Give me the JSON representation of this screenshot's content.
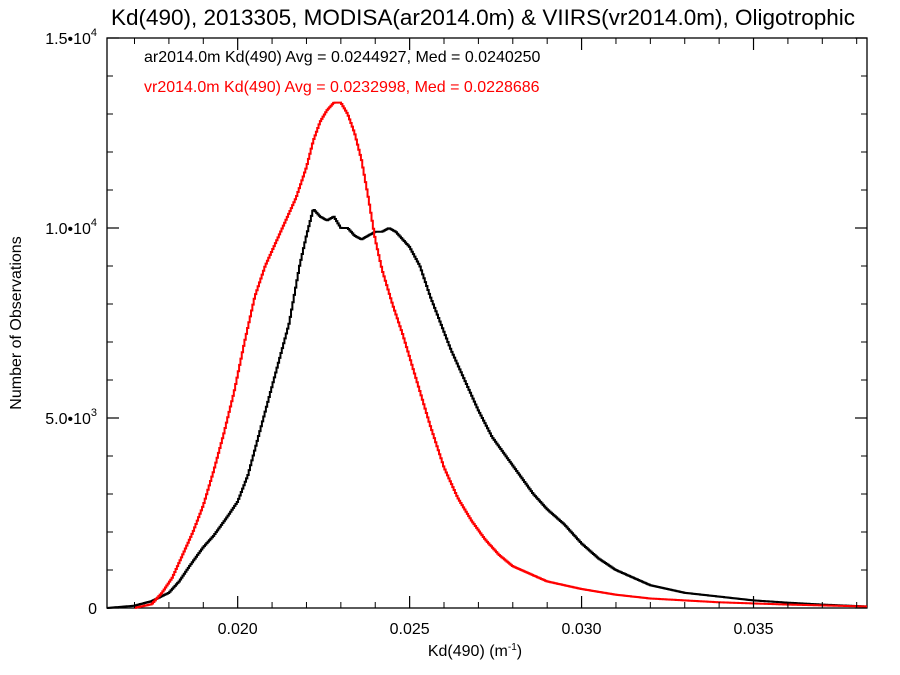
{
  "chart_data": {
    "type": "line",
    "title": "Kd(490), 2013305, MODISA(ar2014.0m) & VIIRS(vr2014.0m), Oligotrophic",
    "xlabel": "Kd(490) (m",
    "xlabel_sup": "-1",
    "xlabel_close": ")",
    "ylabel": "Number of Observations",
    "xlim": [
      0.0162,
      0.0383
    ],
    "ylim": [
      0,
      15000
    ],
    "x_ticks": [
      {
        "value": 0.02,
        "label": "0.020"
      },
      {
        "value": 0.025,
        "label": "0.025"
      },
      {
        "value": 0.03,
        "label": "0.030"
      },
      {
        "value": 0.035,
        "label": "0.035"
      }
    ],
    "y_ticks": [
      {
        "value": 0,
        "label": "0",
        "exp": ""
      },
      {
        "value": 5000,
        "label": "5.0•10",
        "exp": "3"
      },
      {
        "value": 10000,
        "label": "1.0•10",
        "exp": "4"
      },
      {
        "value": 15000,
        "label": "1.5•10",
        "exp": "4"
      }
    ],
    "grid": false,
    "legend_position": "top-left",
    "series": [
      {
        "name": "ar2014.0m Kd(490) Avg = 0.0244927, Med = 0.0240250",
        "color": "#000000",
        "points": [
          [
            0.0162,
            0
          ],
          [
            0.017,
            60
          ],
          [
            0.0175,
            180
          ],
          [
            0.018,
            400
          ],
          [
            0.0183,
            700
          ],
          [
            0.0186,
            1100
          ],
          [
            0.019,
            1600
          ],
          [
            0.0193,
            1900
          ],
          [
            0.0197,
            2400
          ],
          [
            0.02,
            2800
          ],
          [
            0.0203,
            3500
          ],
          [
            0.0206,
            4500
          ],
          [
            0.0209,
            5500
          ],
          [
            0.0212,
            6500
          ],
          [
            0.0215,
            7500
          ],
          [
            0.0218,
            9000
          ],
          [
            0.022,
            9800
          ],
          [
            0.0222,
            10500
          ],
          [
            0.0224,
            10300
          ],
          [
            0.0226,
            10200
          ],
          [
            0.0228,
            10300
          ],
          [
            0.023,
            10000
          ],
          [
            0.0232,
            10000
          ],
          [
            0.0234,
            9800
          ],
          [
            0.0236,
            9700
          ],
          [
            0.0238,
            9800
          ],
          [
            0.024,
            9900
          ],
          [
            0.0242,
            9900
          ],
          [
            0.0244,
            10000
          ],
          [
            0.0246,
            9900
          ],
          [
            0.0248,
            9700
          ],
          [
            0.025,
            9500
          ],
          [
            0.0253,
            9000
          ],
          [
            0.0256,
            8200
          ],
          [
            0.0259,
            7500
          ],
          [
            0.0262,
            6800
          ],
          [
            0.0266,
            6000
          ],
          [
            0.027,
            5200
          ],
          [
            0.0274,
            4500
          ],
          [
            0.0278,
            4000
          ],
          [
            0.0282,
            3500
          ],
          [
            0.0286,
            3000
          ],
          [
            0.029,
            2600
          ],
          [
            0.0295,
            2200
          ],
          [
            0.03,
            1700
          ],
          [
            0.0305,
            1300
          ],
          [
            0.031,
            1000
          ],
          [
            0.0315,
            800
          ],
          [
            0.032,
            600
          ],
          [
            0.033,
            400
          ],
          [
            0.034,
            300
          ],
          [
            0.035,
            200
          ],
          [
            0.036,
            140
          ],
          [
            0.037,
            90
          ],
          [
            0.0383,
            40
          ]
        ]
      },
      {
        "name": "vr2014.0m Kd(490) Avg = 0.0232998, Med = 0.0228686",
        "color": "#ff0000",
        "points": [
          [
            0.017,
            0
          ],
          [
            0.0175,
            100
          ],
          [
            0.0178,
            400
          ],
          [
            0.0181,
            800
          ],
          [
            0.0184,
            1400
          ],
          [
            0.0187,
            2000
          ],
          [
            0.019,
            2700
          ],
          [
            0.0193,
            3600
          ],
          [
            0.0196,
            4600
          ],
          [
            0.0199,
            5700
          ],
          [
            0.0202,
            7000
          ],
          [
            0.0205,
            8200
          ],
          [
            0.0208,
            9000
          ],
          [
            0.0211,
            9600
          ],
          [
            0.0214,
            10200
          ],
          [
            0.0217,
            10800
          ],
          [
            0.022,
            11600
          ],
          [
            0.0222,
            12300
          ],
          [
            0.0224,
            12800
          ],
          [
            0.0226,
            13100
          ],
          [
            0.0228,
            13300
          ],
          [
            0.023,
            13300
          ],
          [
            0.0232,
            13000
          ],
          [
            0.0234,
            12500
          ],
          [
            0.0236,
            11800
          ],
          [
            0.0238,
            10800
          ],
          [
            0.024,
            9700
          ],
          [
            0.0242,
            8900
          ],
          [
            0.0245,
            8000
          ],
          [
            0.0248,
            7200
          ],
          [
            0.0252,
            6000
          ],
          [
            0.0256,
            4800
          ],
          [
            0.026,
            3700
          ],
          [
            0.0264,
            2900
          ],
          [
            0.0268,
            2300
          ],
          [
            0.0272,
            1800
          ],
          [
            0.0276,
            1400
          ],
          [
            0.028,
            1100
          ],
          [
            0.0285,
            900
          ],
          [
            0.029,
            700
          ],
          [
            0.03,
            500
          ],
          [
            0.031,
            350
          ],
          [
            0.032,
            250
          ],
          [
            0.034,
            150
          ],
          [
            0.036,
            90
          ],
          [
            0.0383,
            40
          ]
        ]
      }
    ]
  }
}
